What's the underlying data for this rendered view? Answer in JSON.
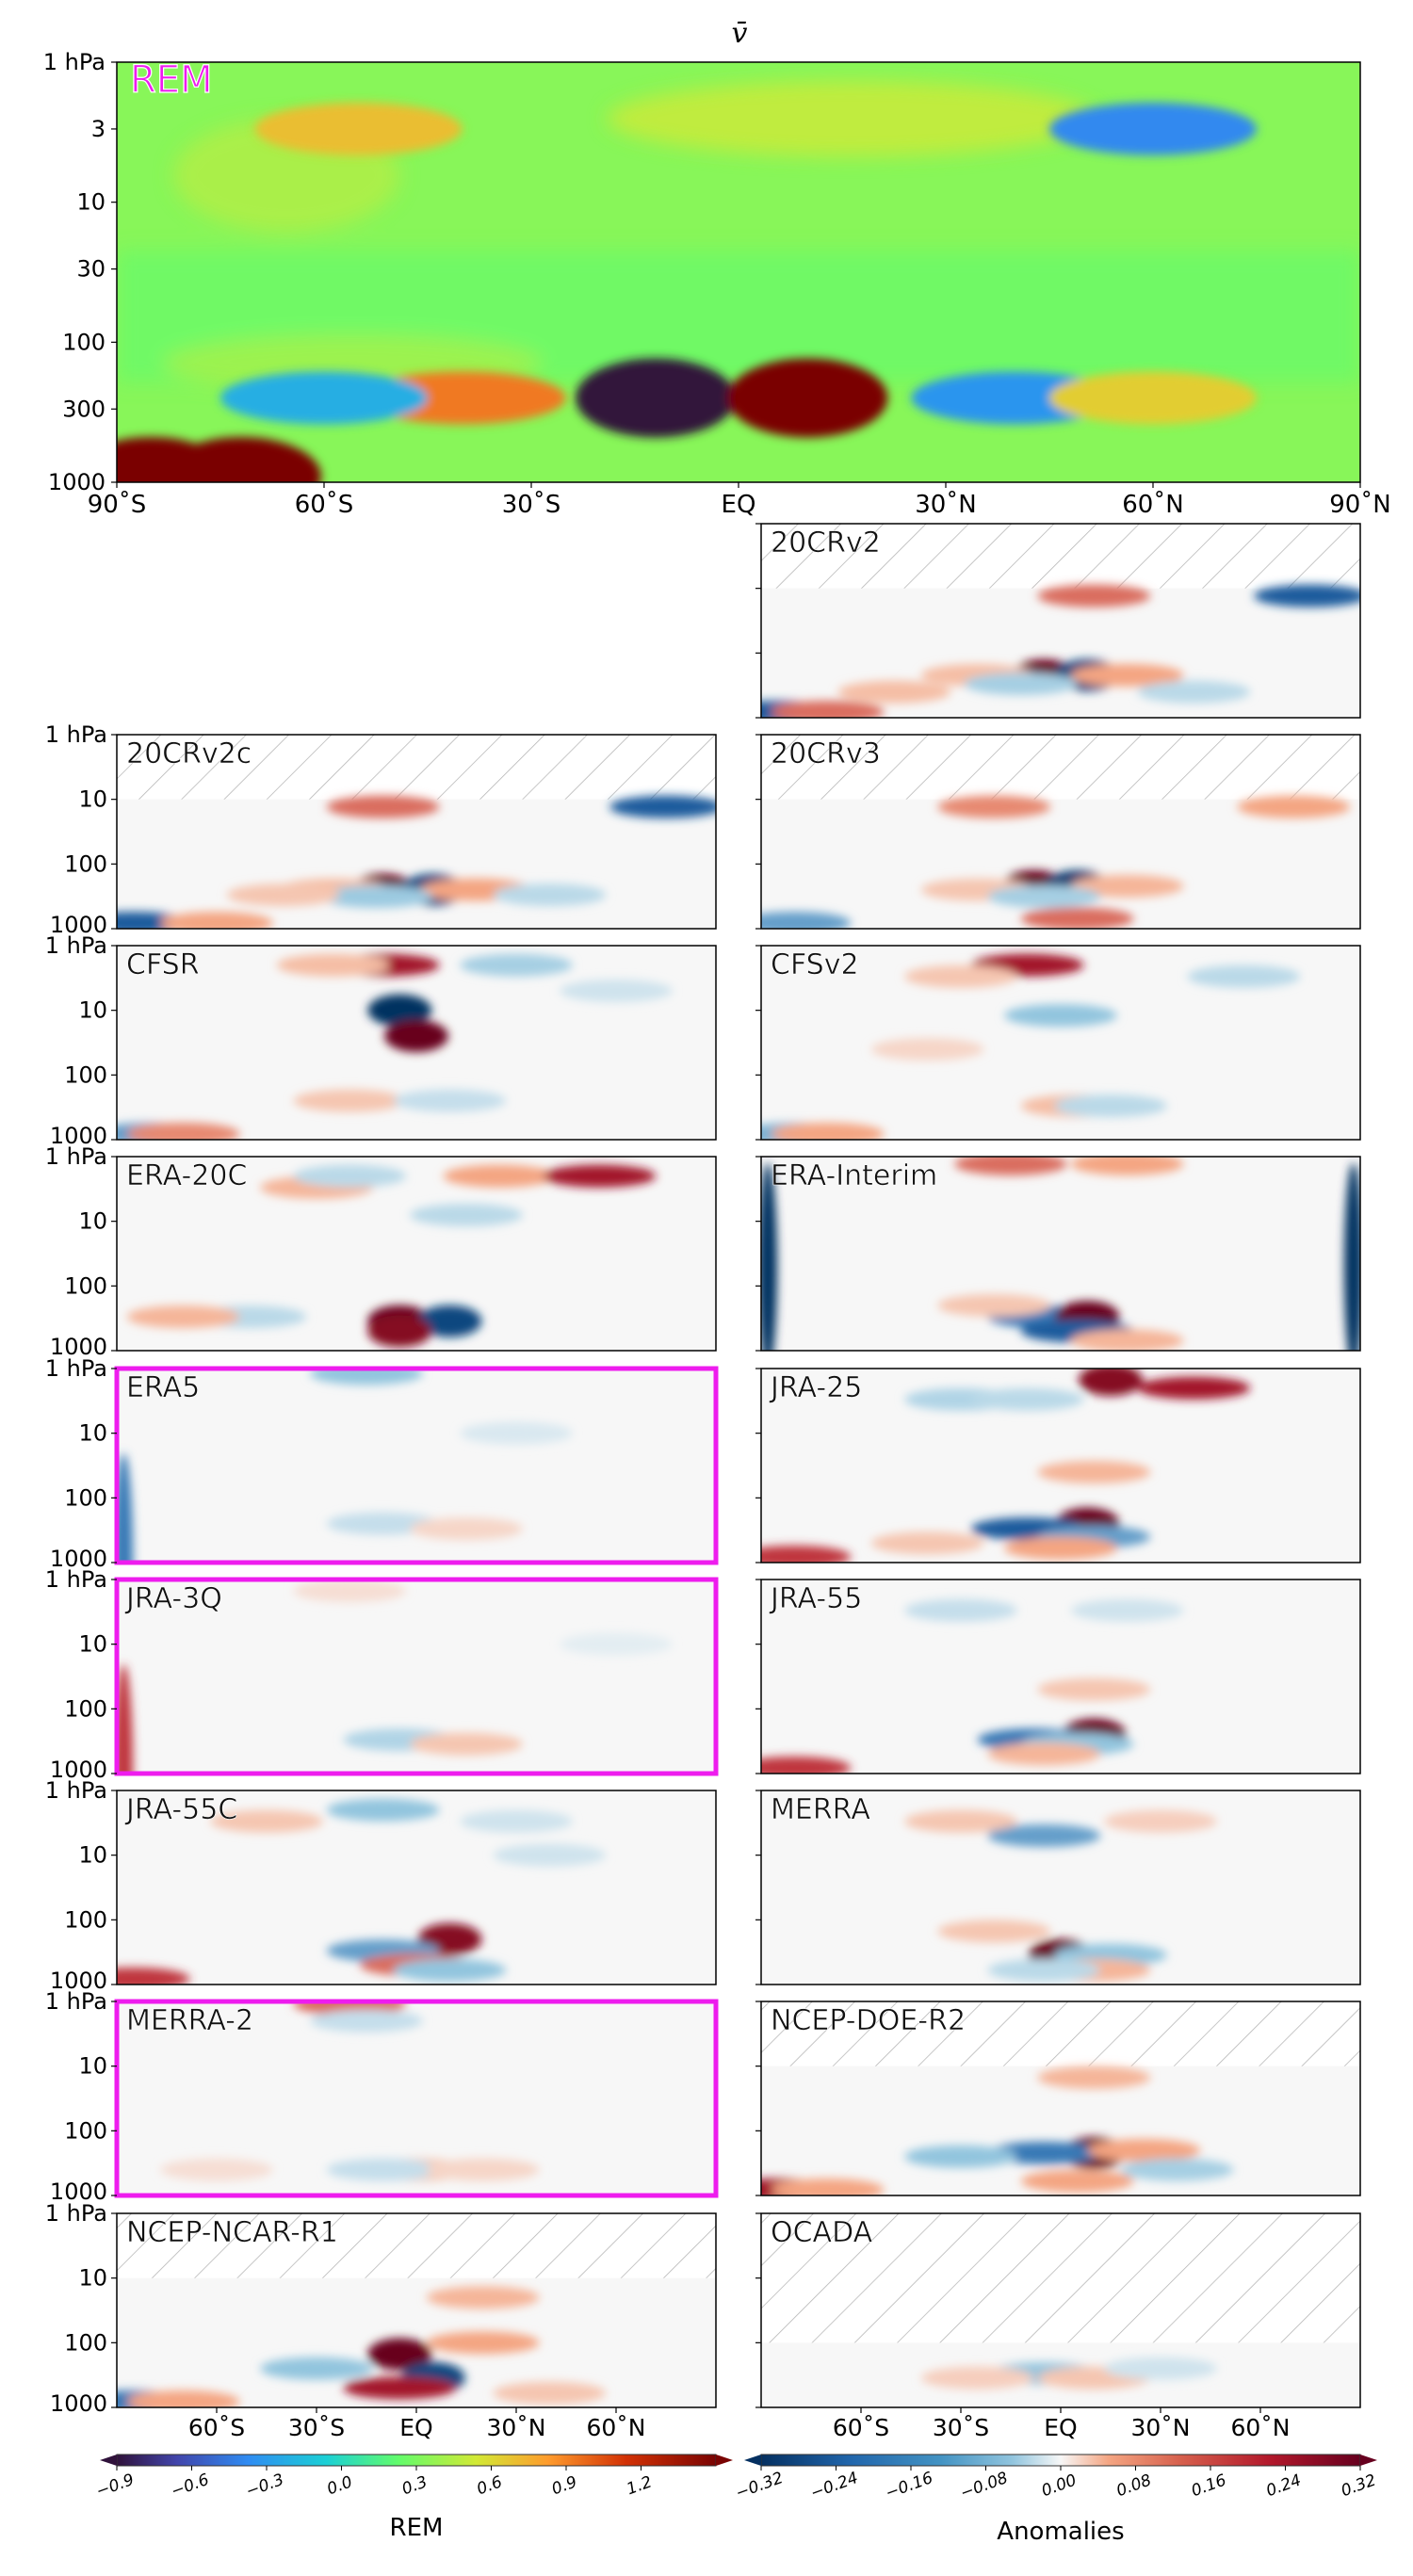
{
  "figure": {
    "title": "v̄",
    "pressure_ticks": [
      "1 hPa",
      "3",
      "10",
      "30",
      "100",
      "300",
      "1000"
    ],
    "small_pressure_ticks": [
      "1 hPa",
      "10",
      "100",
      "1000"
    ],
    "lat_ticks_main": [
      "90˚S",
      "60˚S",
      "30˚S",
      "EQ",
      "30˚N",
      "60˚N",
      "90˚N"
    ],
    "lat_ticks_bottom": [
      "60˚S",
      "30˚S",
      "EQ",
      "30˚N",
      "60˚N"
    ]
  },
  "chart_data": [
    {
      "type": "heatmap",
      "name": "REM",
      "title": "v̄",
      "x_range_deg": [
        -90,
        90
      ],
      "y_range_hPa": [
        1000,
        1
      ],
      "y_scale": "log",
      "colormap": "jet-like",
      "features": [
        {
          "lat": -12,
          "p": 250,
          "value": -1.3
        },
        {
          "lat": 10,
          "p": 250,
          "value": 1.4
        },
        {
          "lat": -40,
          "p": 250,
          "value": 0.7
        },
        {
          "lat": 40,
          "p": 250,
          "value": -0.4
        },
        {
          "lat": -60,
          "p": 250,
          "value": -0.3
        },
        {
          "lat": 60,
          "p": 250,
          "value": 0.45
        },
        {
          "lat": -55,
          "p": 3,
          "value": 0.5
        },
        {
          "lat": 60,
          "p": 3,
          "value": -0.45
        },
        {
          "lat": -85,
          "p": 1000,
          "value": 1.2
        },
        {
          "lat": -72,
          "p": 1000,
          "value": 1.2
        }
      ]
    },
    {
      "type": "heatmap",
      "colorbar": "REM",
      "label": "REM",
      "ticks": [
        "−0.9",
        "−0.6",
        "−0.3",
        "0.0",
        "0.3",
        "0.6",
        "0.9",
        "1.2"
      ],
      "range": [
        -0.9,
        1.2
      ]
    },
    {
      "type": "heatmap",
      "colorbar": "Anomalies",
      "label": "Anomalies",
      "ticks": [
        "−0.32",
        "−0.24",
        "−0.16",
        "−0.08",
        "0.00",
        "0.08",
        "0.16",
        "0.24",
        "0.32"
      ],
      "range": [
        -0.32,
        0.32
      ]
    }
  ],
  "panels": [
    {
      "name": "20CRv2",
      "top_hPa": 10,
      "highlight": false,
      "features": [
        [
          -5,
          220,
          1.0
        ],
        [
          8,
          220,
          -0.9
        ],
        [
          20,
          220,
          0.5
        ],
        [
          -25,
          220,
          0.35
        ],
        [
          -12,
          300,
          -0.4
        ],
        [
          10,
          12,
          0.6
        ],
        [
          75,
          12,
          -0.8
        ],
        [
          -85,
          900,
          -0.8
        ],
        [
          -70,
          900,
          0.6
        ],
        [
          -50,
          400,
          0.35
        ],
        [
          40,
          400,
          -0.3
        ]
      ]
    },
    {
      "name": "20CRv2c",
      "top_hPa": 10,
      "highlight": false,
      "features": [
        [
          -10,
          250,
          1.0
        ],
        [
          5,
          250,
          -0.9
        ],
        [
          18,
          250,
          0.5
        ],
        [
          -25,
          250,
          0.35
        ],
        [
          -12,
          320,
          -0.45
        ],
        [
          -10,
          12,
          0.6
        ],
        [
          75,
          12,
          -0.8
        ],
        [
          -85,
          900,
          -0.8
        ],
        [
          -60,
          900,
          0.5
        ],
        [
          -40,
          300,
          0.3
        ],
        [
          40,
          300,
          -0.3
        ]
      ]
    },
    {
      "name": "20CRv3",
      "top_hPa": 10,
      "highlight": false,
      "features": [
        [
          -8,
          220,
          1.0
        ],
        [
          5,
          220,
          -0.95
        ],
        [
          20,
          220,
          0.4
        ],
        [
          -25,
          250,
          0.3
        ],
        [
          -5,
          320,
          -0.4
        ],
        [
          -20,
          12,
          0.55
        ],
        [
          70,
          12,
          0.5
        ],
        [
          -80,
          900,
          -0.6
        ],
        [
          5,
          700,
          0.6
        ]
      ]
    },
    {
      "name": "CFSR",
      "top_hPa": 1,
      "highlight": false,
      "features": [
        [
          -10,
          2,
          0.8
        ],
        [
          -5,
          10,
          -1.0
        ],
        [
          0,
          25,
          1.0
        ],
        [
          -25,
          2,
          0.35
        ],
        [
          30,
          2,
          -0.4
        ],
        [
          -80,
          900,
          -0.6
        ],
        [
          -70,
          900,
          0.55
        ],
        [
          -20,
          250,
          0.3
        ],
        [
          10,
          250,
          -0.25
        ],
        [
          60,
          5,
          -0.2
        ]
      ]
    },
    {
      "name": "CFSv2",
      "top_hPa": 1,
      "highlight": false,
      "features": [
        [
          -10,
          2,
          0.8
        ],
        [
          0,
          12,
          -0.5
        ],
        [
          5,
          300,
          0.35
        ],
        [
          15,
          300,
          -0.3
        ],
        [
          -30,
          3,
          0.3
        ],
        [
          55,
          3,
          -0.3
        ],
        [
          -80,
          900,
          -0.55
        ],
        [
          -70,
          900,
          0.5
        ],
        [
          -40,
          40,
          0.2
        ]
      ]
    },
    {
      "name": "ERA-20C",
      "top_hPa": 1,
      "highlight": false,
      "features": [
        [
          -5,
          350,
          1.0
        ],
        [
          10,
          350,
          -0.9
        ],
        [
          -5,
          500,
          0.9
        ],
        [
          -30,
          3,
          0.4
        ],
        [
          -20,
          2,
          -0.3
        ],
        [
          25,
          2,
          0.5
        ],
        [
          55,
          2,
          0.8
        ],
        [
          15,
          8,
          -0.3
        ],
        [
          -50,
          300,
          -0.3
        ],
        [
          -70,
          300,
          0.4
        ]
      ]
    },
    {
      "name": "ERA-Interim",
      "top_hPa": 1,
      "highlight": false,
      "features": [
        [
          -88,
          50,
          -1.2
        ],
        [
          88,
          50,
          -1.2
        ],
        [
          -5,
          300,
          -0.7
        ],
        [
          8,
          300,
          1.0
        ],
        [
          5,
          500,
          -0.8
        ],
        [
          -15,
          1.3,
          0.6
        ],
        [
          20,
          1.3,
          0.5
        ],
        [
          -20,
          200,
          0.3
        ],
        [
          20,
          700,
          0.4
        ]
      ]
    },
    {
      "name": "ERA5",
      "top_hPa": 1,
      "highlight": true,
      "features": [
        [
          -15,
          1.2,
          -0.5
        ],
        [
          -88,
          900,
          -0.7
        ],
        [
          -10,
          250,
          -0.25
        ],
        [
          15,
          300,
          0.2
        ],
        [
          30,
          10,
          -0.15
        ]
      ]
    },
    {
      "name": "JRA-25",
      "top_hPa": 1,
      "highlight": false,
      "features": [
        [
          15,
          1.5,
          0.9
        ],
        [
          40,
          2,
          0.8
        ],
        [
          -30,
          3,
          -0.35
        ],
        [
          -10,
          3,
          -0.3
        ],
        [
          8,
          250,
          1.0
        ],
        [
          -10,
          300,
          -0.8
        ],
        [
          10,
          400,
          -0.6
        ],
        [
          0,
          600,
          0.5
        ],
        [
          -80,
          900,
          0.7
        ],
        [
          10,
          40,
          0.4
        ],
        [
          -40,
          500,
          0.3
        ]
      ]
    },
    {
      "name": "JRA-3Q",
      "top_hPa": 1,
      "highlight": true,
      "features": [
        [
          -88,
          900,
          0.7
        ],
        [
          -5,
          300,
          -0.35
        ],
        [
          15,
          350,
          0.3
        ],
        [
          -20,
          1.5,
          0.15
        ],
        [
          60,
          10,
          -0.1
        ]
      ]
    },
    {
      "name": "JRA-55",
      "top_hPa": 1,
      "highlight": false,
      "features": [
        [
          10,
          250,
          1.1
        ],
        [
          -8,
          300,
          -0.7
        ],
        [
          5,
          350,
          -0.5
        ],
        [
          -5,
          500,
          0.4
        ],
        [
          -80,
          900,
          0.7
        ],
        [
          -30,
          3,
          -0.25
        ],
        [
          20,
          3,
          -0.2
        ],
        [
          10,
          50,
          0.3
        ]
      ]
    },
    {
      "name": "JRA-55C",
      "top_hPa": 1,
      "highlight": false,
      "features": [
        [
          -10,
          2,
          -0.5
        ],
        [
          10,
          200,
          0.9
        ],
        [
          -10,
          300,
          -0.6
        ],
        [
          0,
          500,
          0.6
        ],
        [
          10,
          600,
          -0.5
        ],
        [
          -85,
          900,
          0.7
        ],
        [
          -45,
          3,
          0.3
        ],
        [
          30,
          3,
          -0.2
        ],
        [
          40,
          10,
          -0.2
        ]
      ]
    },
    {
      "name": "MERRA",
      "top_hPa": 1,
      "highlight": false,
      "features": [
        [
          -5,
          5,
          -0.6
        ],
        [
          0,
          350,
          1.2
        ],
        [
          15,
          350,
          -0.5
        ],
        [
          -30,
          3,
          0.3
        ],
        [
          30,
          3,
          0.25
        ],
        [
          -20,
          150,
          0.3
        ],
        [
          10,
          600,
          0.4
        ],
        [
          -5,
          600,
          -0.3
        ]
      ]
    },
    {
      "name": "MERRA-2",
      "top_hPa": 1,
      "highlight": true,
      "features": [
        [
          -20,
          1.1,
          0.6
        ],
        [
          -15,
          2,
          -0.25
        ],
        [
          0,
          400,
          0.3
        ],
        [
          -10,
          400,
          -0.25
        ],
        [
          20,
          400,
          0.2
        ],
        [
          -60,
          400,
          0.15
        ]
      ]
    },
    {
      "name": "NCEP-DOE-R2",
      "top_hPa": 10,
      "highlight": false,
      "features": [
        [
          10,
          220,
          1.1
        ],
        [
          -5,
          220,
          -0.7
        ],
        [
          -30,
          250,
          -0.5
        ],
        [
          25,
          200,
          0.5
        ],
        [
          -85,
          900,
          0.8
        ],
        [
          -70,
          900,
          0.5
        ],
        [
          10,
          15,
          0.4
        ],
        [
          35,
          400,
          -0.4
        ],
        [
          5,
          600,
          0.5
        ]
      ]
    },
    {
      "name": "NCEP-NCAR-R1",
      "top_hPa": 10,
      "highlight": false,
      "features": [
        [
          -5,
          150,
          1.3
        ],
        [
          5,
          350,
          -0.9
        ],
        [
          -5,
          500,
          0.8
        ],
        [
          -30,
          250,
          -0.5
        ],
        [
          20,
          100,
          0.5
        ],
        [
          -85,
          900,
          -0.7
        ],
        [
          -70,
          900,
          0.5
        ],
        [
          20,
          20,
          0.4
        ],
        [
          40,
          600,
          0.3
        ]
      ]
    },
    {
      "name": "OCADA",
      "top_hPa": 100,
      "highlight": false,
      "features": [
        [
          -5,
          300,
          -0.5
        ],
        [
          10,
          350,
          0.3
        ],
        [
          -25,
          350,
          0.25
        ],
        [
          30,
          250,
          -0.2
        ]
      ]
    }
  ],
  "colors": {
    "highlight": "#ee1cee",
    "rem_label": "#ee1cee",
    "hatch": "#b4b4b4"
  }
}
